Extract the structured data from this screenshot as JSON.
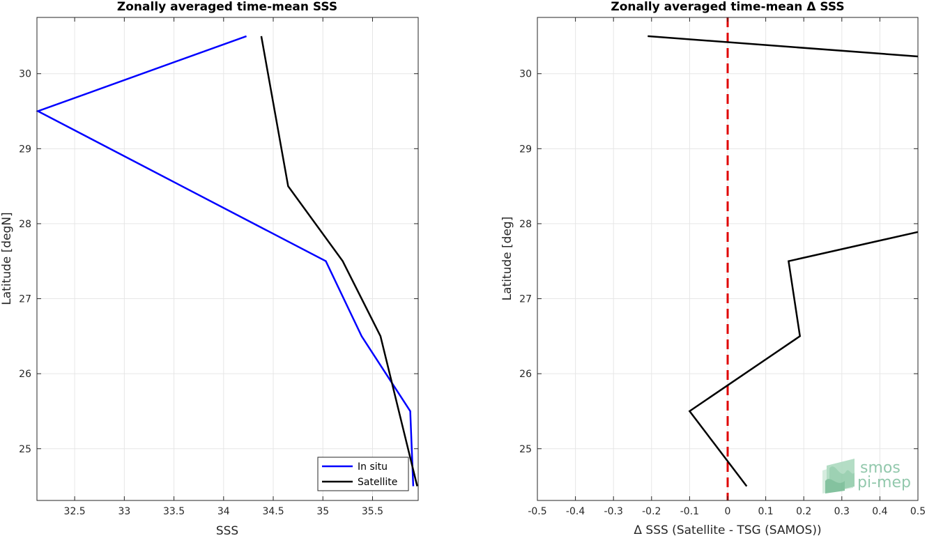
{
  "chart_data": [
    {
      "type": "line",
      "title": "Zonally averaged time-mean SSS",
      "xlabel": "SSS",
      "ylabel": "Latitude [degN]",
      "xlim": [
        32.12,
        35.96
      ],
      "ylim": [
        24.31,
        30.75
      ],
      "xticks": [
        32.5,
        33,
        33.5,
        34,
        34.5,
        35,
        35.5
      ],
      "xtick_labels": [
        "32.5",
        "33",
        "33.5",
        "34",
        "34.5",
        "35",
        "35.5"
      ],
      "yticks": [
        25,
        26,
        27,
        28,
        29,
        30
      ],
      "ytick_labels": [
        "25",
        "26",
        "27",
        "28",
        "29",
        "30"
      ],
      "grid": true,
      "legend_position": "bottom-right",
      "series": [
        {
          "name": "In situ",
          "color": "#0000ff",
          "points": [
            [
              34.23,
              30.5
            ],
            [
              32.13,
              29.5
            ],
            [
              35.03,
              27.5
            ],
            [
              35.39,
              26.5
            ],
            [
              35.88,
              25.5
            ],
            [
              35.91,
              24.5
            ]
          ]
        },
        {
          "name": "Satellite",
          "color": "#000000",
          "points": [
            [
              34.38,
              30.5
            ],
            [
              34.65,
              28.5
            ],
            [
              35.2,
              27.5
            ],
            [
              35.58,
              26.5
            ],
            [
              35.95,
              24.5
            ]
          ]
        }
      ]
    },
    {
      "type": "line",
      "title": "Zonally averaged time-mean Δ SSS",
      "xlabel": "Δ SSS (Satellite - TSG (SAMOS))",
      "ylabel": "Latitude [deg]",
      "xlim": [
        -0.5,
        0.5
      ],
      "ylim": [
        24.31,
        30.75
      ],
      "xticks": [
        -0.5,
        -0.4,
        -0.3,
        -0.2,
        -0.1,
        0,
        0.1,
        0.2,
        0.3,
        0.4,
        0.5
      ],
      "xtick_labels": [
        "-0.5",
        "-0.4",
        "-0.3",
        "-0.2",
        "-0.1",
        "0",
        "0.1",
        "0.2",
        "0.3",
        "0.4",
        "0.5"
      ],
      "yticks": [
        25,
        26,
        27,
        28,
        29,
        30
      ],
      "ytick_labels": [
        "25",
        "26",
        "27",
        "28",
        "29",
        "30"
      ],
      "grid": true,
      "reference_line": {
        "x": 0,
        "color": "#e00000",
        "style": "dashed"
      },
      "series": [
        {
          "color": "#000000",
          "points": [
            [
              -0.21,
              30.5
            ],
            [
              0.5,
              30.23
            ],
            [
              null,
              null
            ],
            [
              0.5,
              27.89
            ],
            [
              0.16,
              27.5
            ],
            [
              0.19,
              26.5
            ],
            [
              -0.1,
              25.5
            ],
            [
              0.05,
              24.5
            ]
          ]
        }
      ]
    }
  ],
  "logo": {
    "line1": "smos",
    "line2": "pi-mep",
    "color": "#7fbf9e"
  }
}
